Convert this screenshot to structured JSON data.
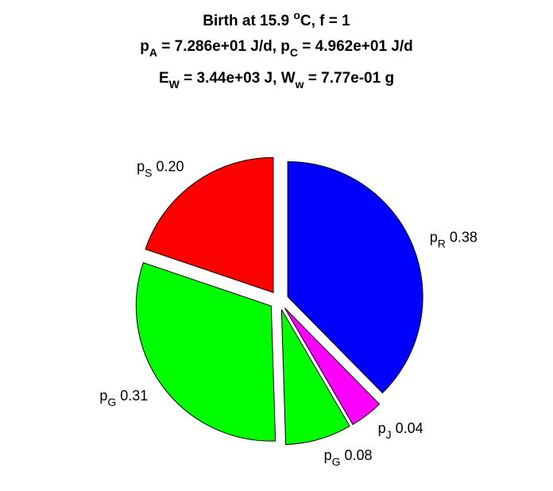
{
  "chart_data": {
    "type": "pie",
    "title": {
      "line1": {
        "a": "Birth at 15.9 ",
        "sup": "o",
        "b": "C, f = 1"
      },
      "line2": {
        "p1": "p",
        "s1": "A",
        "m1": " = 7.286e+01 J/d, ",
        "p2": "p",
        "s2": "C",
        "m2": " = 4.962e+01 J/d"
      },
      "line3": {
        "p1": "E",
        "s1": "W",
        "m1": " = 3.44e+03 J, ",
        "p2": "W",
        "s2": "w",
        "m2": " = 7.77e-01 g"
      }
    },
    "slices": [
      {
        "base": "p",
        "sub": "R",
        "value": 0.38,
        "value_label": " 0.38",
        "color": "#0000ff"
      },
      {
        "base": "p",
        "sub": "J",
        "value": 0.04,
        "value_label": " 0.04",
        "color": "#ff00ff"
      },
      {
        "base": "p",
        "sub": "G",
        "value": 0.08,
        "value_label": " 0.08",
        "color": "#00ff00"
      },
      {
        "base": "p",
        "sub": "G",
        "value": 0.31,
        "value_label": " 0.31",
        "color": "#00ff00"
      },
      {
        "base": "p",
        "sub": "S",
        "value": 0.2,
        "value_label": " 0.20",
        "color": "#ff0000"
      }
    ]
  }
}
